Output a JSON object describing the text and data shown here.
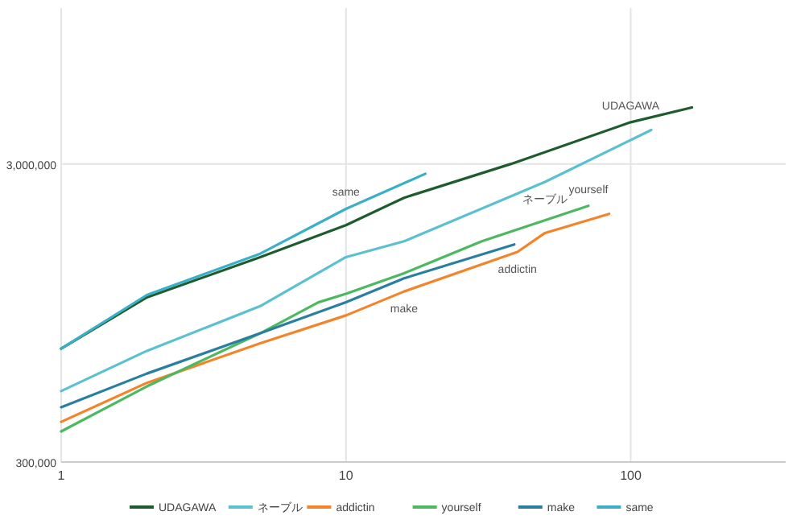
{
  "chart_data": {
    "type": "line",
    "log": "xy",
    "grid": true,
    "legend": "bottom",
    "marker": "none",
    "line_style": "solid",
    "xlim": [
      1,
      350
    ],
    "ylim": [
      300000,
      10000000
    ],
    "xticks": [
      1,
      10,
      100
    ],
    "yticks": [
      {
        "value": 300000,
        "label": "300,000"
      },
      {
        "value": 3000000,
        "label": "3,000,000"
      }
    ],
    "series": [
      {
        "name": "UDAGAWA",
        "color": "#1e5c2e",
        "x": [
          1,
          2,
          5,
          10,
          16,
          38,
          100,
          164
        ],
        "values": [
          720000,
          1070000,
          1460000,
          1870000,
          2310000,
          3000000,
          4140000,
          4640000
        ]
      },
      {
        "name": "ネーブル",
        "color": "#5bc0d0",
        "x": [
          1,
          2,
          5,
          10,
          16,
          50,
          118
        ],
        "values": [
          519000,
          708000,
          1000000,
          1460000,
          1650000,
          2610000,
          3900000
        ]
      },
      {
        "name": "addictin",
        "color": "#f4842a",
        "x": [
          1,
          2,
          5,
          10,
          16,
          40,
          50,
          84
        ],
        "values": [
          409000,
          553000,
          751000,
          931000,
          1120000,
          1520000,
          1760000,
          2040000
        ]
      },
      {
        "name": "yourself",
        "color": "#4cb860",
        "x": [
          1,
          2,
          5,
          8,
          10,
          16,
          30,
          71
        ],
        "values": [
          380000,
          538000,
          811000,
          1030000,
          1100000,
          1290000,
          1650000,
          2170000
        ]
      },
      {
        "name": "make",
        "color": "#2a7fa0",
        "x": [
          1,
          2,
          5,
          10,
          16,
          39
        ],
        "values": [
          458000,
          594000,
          811000,
          1030000,
          1240000,
          1610000
        ]
      },
      {
        "name": "same",
        "color": "#3ab0c8",
        "x": [
          1,
          2,
          5,
          10,
          19
        ],
        "values": [
          720000,
          1090000,
          1500000,
          2120000,
          2780000
        ]
      }
    ],
    "annotations": [
      {
        "text": "UDAGAWA",
        "x": 100,
        "y": 4140000
      },
      {
        "text": "ネーブル",
        "x": 50,
        "y": 2610000
      },
      {
        "text": "yourself",
        "x": 71,
        "y": 2170000
      },
      {
        "text": "addictin",
        "x": 40,
        "y": 1520000
      },
      {
        "text": "make",
        "x": 16,
        "y": 1120000
      },
      {
        "text": "same",
        "x": 10,
        "y": 2120000
      }
    ]
  }
}
